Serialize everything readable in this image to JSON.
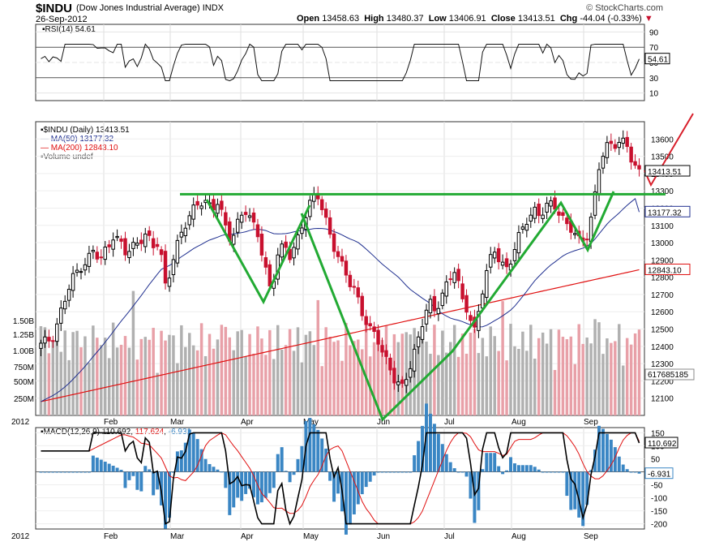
{
  "header": {
    "symbol": "$INDU",
    "name": "(Dow Jones Industrial Average) INDX",
    "date": "26-Sep-2012",
    "open_label": "Open",
    "open": "13458.63",
    "high_label": "High",
    "high": "13480.37",
    "low_label": "Low",
    "low": "13406.91",
    "close_label": "Close",
    "close": "13413.51",
    "chg_label": "Chg",
    "chg": "-44.04 (-0.33%)",
    "watermark": "© StockCharts.com"
  },
  "rsi_panel": {
    "legend": "RSI(14) 54.61",
    "value_tag": "54.61",
    "ticks": [
      "90",
      "70",
      "50",
      "30",
      "10"
    ]
  },
  "price_panel": {
    "legend_title": "$INDU (Daily) 13413.51",
    "legend_ma50": "MA(50) 13177.32",
    "legend_ma200": "MA(200) 12843.10",
    "legend_volume": "Volume undef",
    "price_ticks": [
      "13600",
      "13500",
      "13400",
      "13300",
      "13200",
      "13100",
      "13000",
      "12900",
      "12800",
      "12700",
      "12600",
      "12500",
      "12400",
      "12300",
      "12200",
      "12100"
    ],
    "volume_ticks": [
      "1.50B",
      "1.25B",
      "1.00B",
      "750M",
      "500M",
      "250M"
    ],
    "tags": {
      "close": "13413.51",
      "ma50": "13177.32",
      "ma200": "12843.10",
      "volume": "617685185"
    }
  },
  "macd_panel": {
    "legend_title": "MACD(12,26,9)",
    "legend_macd": "110.692",
    "legend_signal": "117.624",
    "legend_hist": "-6.931",
    "ticks": [
      "150",
      "100",
      "50",
      "0",
      "-50",
      "-100",
      "-150",
      "-200"
    ],
    "tags": {
      "macd": "110.692",
      "hist": "-6.931"
    }
  },
  "x_axis": {
    "months": [
      "2012",
      "Feb",
      "Mar",
      "Apr",
      "May",
      "Jun",
      "Jul",
      "Aug",
      "Sep"
    ]
  },
  "colors": {
    "up": "#000000",
    "down": "#c8102e",
    "ma50": "#1f2f8f",
    "ma200": "#e01010",
    "pattern": "#22aa33",
    "arrow": "#d81e2a",
    "vol_up": "#b0b0b0",
    "vol_down": "#e8a0a8",
    "hist": "#3a86c4"
  },
  "chart_data": {
    "type": "candlestick",
    "title": "$INDU (Daily)",
    "y_range": [
      12000,
      13700
    ],
    "months": [
      "2012",
      "Feb",
      "Mar",
      "Apr",
      "May",
      "Jun",
      "Jul",
      "Aug",
      "Sep"
    ],
    "close_path": [
      12400,
      12430,
      12480,
      12600,
      12700,
      12800,
      12870,
      12900,
      12950,
      12880,
      12980,
      13050,
      13000,
      12920,
      12980,
      13030,
      13050,
      12960,
      13000,
      12750,
      12900,
      13000,
      13100,
      13200,
      13250,
      13220,
      13180,
      13250,
      13120,
      13000,
      13100,
      13200,
      13150,
      13050,
      12850,
      12700,
      12950,
      13000,
      12900,
      13000,
      13150,
      13250,
      13280,
      13150,
      13050,
      12950,
      12850,
      12750,
      12700,
      12600,
      12500,
      12450,
      12350,
      12300,
      12200,
      12150,
      12250,
      12400,
      12550,
      12650,
      12580,
      12700,
      12800,
      12850,
      12650,
      12600,
      12500,
      12700,
      12850,
      12950,
      12900,
      12850,
      12950,
      13050,
      13150,
      13200,
      13150,
      13200,
      13230,
      13180,
      13100,
      13050,
      13000,
      13050,
      13200,
      13450,
      13550,
      13580,
      13600,
      13560,
      13450,
      13413
    ],
    "resistance_level": 13280,
    "ma50_end": 13177.32,
    "ma200_end": 12843.1,
    "rsi_end": 54.61,
    "macd_end": {
      "macd": 110.692,
      "signal": 117.624,
      "histogram": -6.931
    }
  }
}
